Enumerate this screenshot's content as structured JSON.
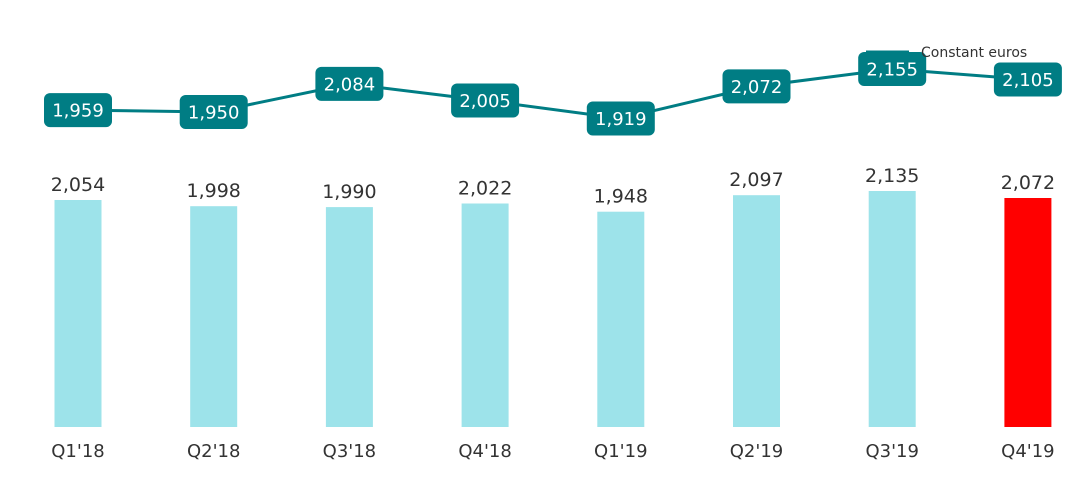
{
  "chart_data": {
    "type": "bar",
    "categories": [
      "Q1'18",
      "Q2'18",
      "Q3'18",
      "Q4'18",
      "Q1'19",
      "Q2'19",
      "Q3'19",
      "Q4'19"
    ],
    "values": [
      2054,
      1998,
      1990,
      2022,
      1948,
      2097,
      2135,
      2072
    ],
    "value_labels": [
      "2,054",
      "1,998",
      "1,990",
      "2,022",
      "1,948",
      "2,097",
      "2,135",
      "2,072"
    ],
    "series": [
      {
        "name": "Constant euros",
        "type": "line",
        "values": [
          1959,
          1950,
          2084,
          2005,
          1919,
          2072,
          2155,
          2105
        ],
        "value_labels": [
          "1,959",
          "1,950",
          "2,084",
          "2,005",
          "1,919",
          "2,072",
          "2,155",
          "2,105"
        ]
      }
    ],
    "legend": {
      "label": "Constant euros",
      "position": "top-right"
    },
    "highlight_index": 7,
    "colors": {
      "bar": "#9de3ea",
      "highlight_bar": "#ff0000",
      "line": "#007d84",
      "line_label_bg": "#007d84"
    },
    "grid": false
  }
}
